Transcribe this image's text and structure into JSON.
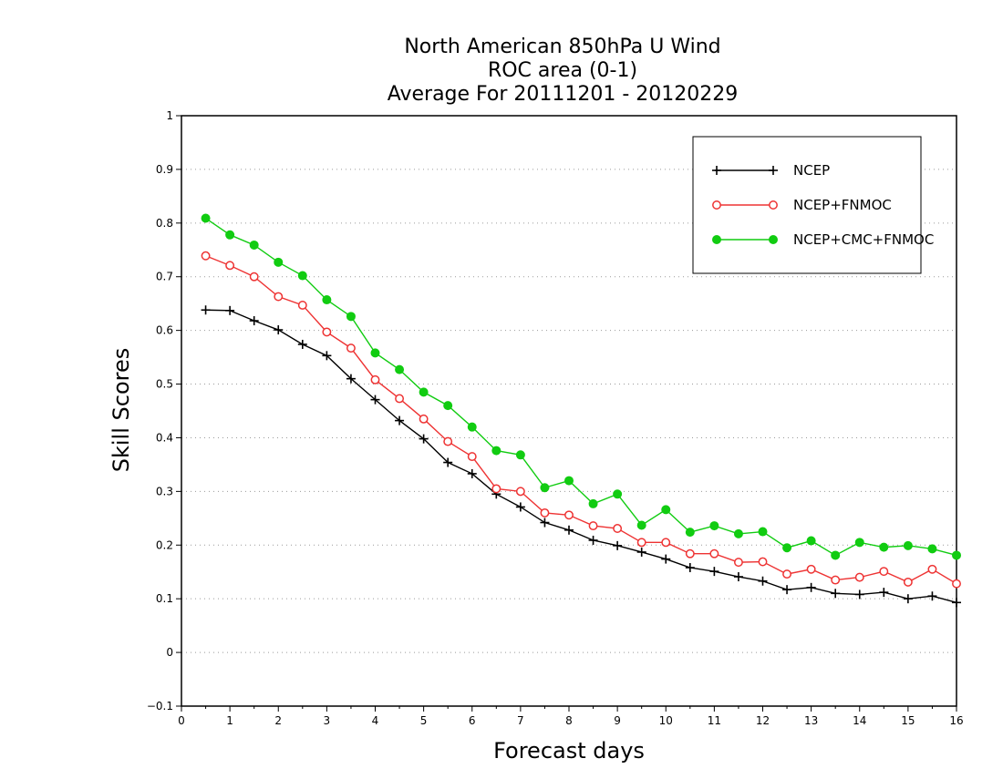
{
  "chart_data": {
    "type": "line",
    "title": [
      "North American 850hPa U Wind",
      "ROC area (0-1)",
      "Average For 20111201 - 20120229"
    ],
    "xlabel": "Forecast days",
    "ylabel": "Skill Scores",
    "xlim": [
      0,
      16
    ],
    "ylim": [
      -0.1,
      1
    ],
    "xticks": [
      "0",
      "1",
      "2",
      "3",
      "4",
      "5",
      "6",
      "7",
      "8",
      "9",
      "10",
      "11",
      "12",
      "13",
      "14",
      "15",
      "16"
    ],
    "yticks": [
      "−0.1",
      "0",
      "0.1",
      "0.2",
      "0.3",
      "0.4",
      "0.5",
      "0.6",
      "0.7",
      "0.8",
      "0.9",
      "1"
    ],
    "grid": "dotted horizontal",
    "legend_position": "top-right",
    "x": [
      0.5,
      1,
      1.5,
      2,
      2.5,
      3,
      3.5,
      4,
      4.5,
      5,
      5.5,
      6,
      6.5,
      7,
      7.5,
      8,
      8.5,
      9,
      9.5,
      10,
      10.5,
      11,
      11.5,
      12,
      12.5,
      13,
      13.5,
      14,
      14.5,
      15,
      15.5,
      16
    ],
    "series": [
      {
        "name": "NCEP",
        "color": "#000000",
        "marker": "plus",
        "values": [
          0.638,
          0.637,
          0.618,
          0.601,
          0.574,
          0.553,
          0.51,
          0.471,
          0.432,
          0.398,
          0.354,
          0.333,
          0.295,
          0.271,
          0.242,
          0.228,
          0.209,
          0.199,
          0.187,
          0.174,
          0.158,
          0.151,
          0.141,
          0.133,
          0.117,
          0.121,
          0.11,
          0.108,
          0.112,
          0.1,
          0.105,
          0.093
        ]
      },
      {
        "name": "NCEP+FNMOC",
        "color": "#ee3333",
        "marker": "open-circle",
        "values": [
          0.739,
          0.721,
          0.7,
          0.663,
          0.647,
          0.597,
          0.567,
          0.508,
          0.473,
          0.435,
          0.393,
          0.365,
          0.305,
          0.3,
          0.26,
          0.256,
          0.236,
          0.231,
          0.205,
          0.205,
          0.184,
          0.184,
          0.168,
          0.169,
          0.146,
          0.155,
          0.135,
          0.14,
          0.151,
          0.131,
          0.155,
          0.128
        ]
      },
      {
        "name": "NCEP+CMC+FNMOC",
        "color": "#11cc11",
        "marker": "filled-circle",
        "values": [
          0.809,
          0.778,
          0.759,
          0.727,
          0.702,
          0.657,
          0.626,
          0.558,
          0.527,
          0.485,
          0.46,
          0.42,
          0.376,
          0.368,
          0.307,
          0.32,
          0.277,
          0.295,
          0.237,
          0.266,
          0.224,
          0.236,
          0.221,
          0.225,
          0.195,
          0.208,
          0.181,
          0.205,
          0.196,
          0.199,
          0.193,
          0.181
        ]
      }
    ]
  }
}
